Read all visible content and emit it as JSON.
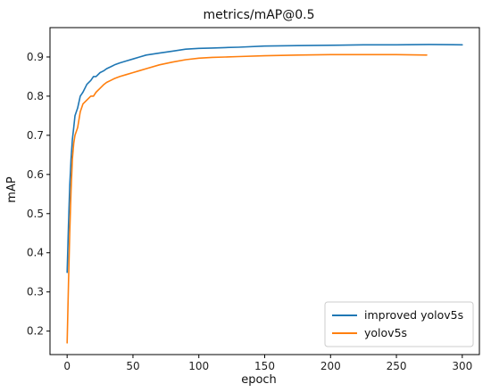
{
  "chart_data": {
    "type": "line",
    "title": "metrics/mAP@0.5",
    "xlabel": "epoch",
    "ylabel": "mAP",
    "xlim": [
      -13,
      313
    ],
    "ylim": [
      0.14,
      0.975
    ],
    "xticks": [
      0,
      50,
      100,
      150,
      200,
      250,
      300
    ],
    "yticks": [
      0.2,
      0.3,
      0.4,
      0.5,
      0.6,
      0.7,
      0.8,
      0.9
    ],
    "xtick_labels": [
      "0",
      "50",
      "100",
      "150",
      "200",
      "250",
      "300"
    ],
    "ytick_labels": [
      "0.2",
      "0.3",
      "0.4",
      "0.5",
      "0.6",
      "0.7",
      "0.8",
      "0.9"
    ],
    "grid": false,
    "legend_position": "lower right",
    "series": [
      {
        "name": "improved yolov5s",
        "color": "#1f77b4",
        "x": [
          0,
          1,
          2,
          3,
          4,
          5,
          6,
          7,
          8,
          10,
          12,
          15,
          18,
          20,
          22,
          25,
          28,
          30,
          33,
          36,
          40,
          45,
          50,
          55,
          60,
          70,
          80,
          90,
          100,
          110,
          120,
          130,
          150,
          175,
          200,
          225,
          250,
          275,
          300
        ],
        "y": [
          0.35,
          0.47,
          0.57,
          0.64,
          0.69,
          0.72,
          0.75,
          0.76,
          0.77,
          0.8,
          0.81,
          0.83,
          0.84,
          0.85,
          0.85,
          0.86,
          0.865,
          0.87,
          0.875,
          0.88,
          0.885,
          0.89,
          0.895,
          0.9,
          0.905,
          0.91,
          0.915,
          0.92,
          0.922,
          0.923,
          0.924,
          0.925,
          0.928,
          0.929,
          0.93,
          0.931,
          0.931,
          0.932,
          0.931
        ]
      },
      {
        "name": "yolov5s",
        "color": "#ff7f0e",
        "x": [
          0,
          1,
          2,
          3,
          4,
          5,
          6,
          7,
          8,
          10,
          12,
          15,
          18,
          20,
          22,
          25,
          28,
          30,
          33,
          36,
          40,
          45,
          50,
          55,
          60,
          70,
          80,
          90,
          100,
          110,
          120,
          130,
          150,
          175,
          200,
          225,
          250,
          273
        ],
        "y": [
          0.17,
          0.32,
          0.45,
          0.56,
          0.64,
          0.68,
          0.7,
          0.71,
          0.72,
          0.76,
          0.78,
          0.79,
          0.8,
          0.8,
          0.81,
          0.82,
          0.83,
          0.835,
          0.84,
          0.845,
          0.85,
          0.855,
          0.86,
          0.865,
          0.87,
          0.88,
          0.887,
          0.893,
          0.897,
          0.899,
          0.9,
          0.901,
          0.903,
          0.905,
          0.906,
          0.906,
          0.906,
          0.905
        ]
      }
    ]
  }
}
